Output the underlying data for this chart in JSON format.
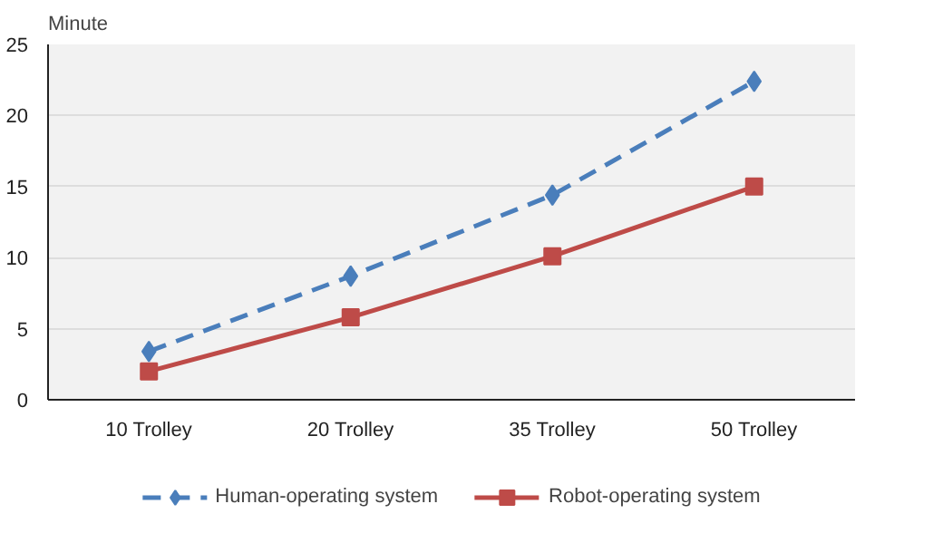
{
  "chart_data": {
    "type": "line",
    "ylabel": "Minute",
    "categories": [
      "10 Trolley",
      "20 Trolley",
      "35 Trolley",
      "50 Trolley"
    ],
    "series": [
      {
        "name": "Human-operating system",
        "color": "#4a7ebb",
        "values": [
          3.4,
          8.7,
          14.4,
          22.4
        ],
        "marker": "diamond",
        "line_style": "dashed"
      },
      {
        "name": "Robot-operating system",
        "color": "#be4b48",
        "values": [
          2.0,
          5.8,
          10.1,
          15.0
        ],
        "marker": "square",
        "line_style": "solid"
      }
    ],
    "ylim": [
      0,
      25
    ],
    "yticks": [
      0,
      5,
      10,
      15,
      20,
      25
    ],
    "grid": "y",
    "legend": "bottom"
  }
}
